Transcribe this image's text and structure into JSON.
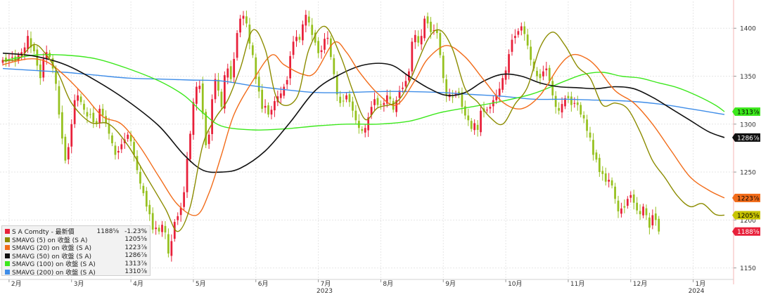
{
  "chart_data": {
    "type": "candlestick",
    "instrument": "S A Comdty",
    "last_price_label": "最新價",
    "last_price": 1188,
    "change_pct": "-1.23%",
    "ylim": [
      1138,
      1428
    ],
    "yticks": [
      1150,
      1200,
      1250,
      1300,
      1350,
      1400
    ],
    "x_axis": {
      "months": [
        {
          "label": "2月",
          "pos": 2
        },
        {
          "label": "3月",
          "pos": 22
        },
        {
          "label": "4月",
          "pos": 41
        },
        {
          "label": "5月",
          "pos": 61
        },
        {
          "label": "6月",
          "pos": 81
        },
        {
          "label": "7月",
          "pos": 101
        },
        {
          "label": "8月",
          "pos": 121
        },
        {
          "label": "9月",
          "pos": 141
        },
        {
          "label": "10月",
          "pos": 161
        },
        {
          "label": "11月",
          "pos": 181
        },
        {
          "label": "12月",
          "pos": 201
        },
        {
          "label": "1月",
          "pos": 221
        }
      ],
      "years": [
        {
          "label": "2023",
          "pos": 103
        },
        {
          "label": "2024",
          "pos": 222
        }
      ],
      "n_bars": 232
    },
    "candle_colors": {
      "up": "#e8203a",
      "down": "#96c11f"
    },
    "closes": [
      1367,
      1365,
      1368,
      1370,
      1366,
      1372,
      1375,
      1380,
      1392,
      1380,
      1376,
      1361,
      1348,
      1368,
      1375,
      1370,
      1358,
      1342,
      1310,
      1285,
      1262,
      1276,
      1300,
      1325,
      1330,
      1323,
      1315,
      1308,
      1310,
      1302,
      1300,
      1316,
      1309,
      1301,
      1290,
      1280,
      1268,
      1272,
      1279,
      1284,
      1289,
      1282,
      1268,
      1252,
      1238,
      1228,
      1214,
      1206,
      1190,
      1192,
      1188,
      1195,
      1187,
      1165,
      1178,
      1198,
      1204,
      1213,
      1229,
      1264,
      1290,
      1323,
      1339,
      1340,
      1311,
      1278,
      1289,
      1326,
      1347,
      1335,
      1318,
      1351,
      1358,
      1347,
      1368,
      1395,
      1410,
      1413,
      1405,
      1384,
      1372,
      1347,
      1334,
      1316,
      1319,
      1310,
      1315,
      1324,
      1329,
      1332,
      1339,
      1346,
      1371,
      1386,
      1391,
      1388,
      1404,
      1414,
      1406,
      1393,
      1385,
      1374,
      1377,
      1389,
      1390,
      1370,
      1352,
      1331,
      1322,
      1324,
      1330,
      1323,
      1314,
      1304,
      1296,
      1293,
      1296,
      1307,
      1318,
      1326,
      1320,
      1320,
      1322,
      1330,
      1326,
      1315,
      1325,
      1335,
      1338,
      1345,
      1355,
      1386,
      1393,
      1385,
      1392,
      1410,
      1405,
      1396,
      1398,
      1395,
      1372,
      1348,
      1330,
      1331,
      1328,
      1332,
      1332,
      1318,
      1309,
      1304,
      1295,
      1301,
      1294,
      1314,
      1313,
      1315,
      1318,
      1325,
      1330,
      1337,
      1348,
      1356,
      1373,
      1388,
      1392,
      1397,
      1402,
      1394,
      1382,
      1367,
      1358,
      1350,
      1348,
      1355,
      1358,
      1345,
      1330,
      1318,
      1314,
      1321,
      1327,
      1327,
      1320,
      1322,
      1320,
      1310,
      1306,
      1293,
      1286,
      1268,
      1263,
      1250,
      1248,
      1240,
      1242,
      1236,
      1222,
      1209,
      1212,
      1213,
      1222,
      1226,
      1218,
      1210,
      1206,
      1214,
      1205,
      1192,
      1205,
      1200,
      1188
    ],
    "series": [
      {
        "name": "SMAVG (5)  on 收盤 (S A)",
        "last": 1205,
        "color": "#8c8c00",
        "knots": [
          [
            0,
            1366
          ],
          [
            5,
            1368
          ],
          [
            10,
            1383
          ],
          [
            14,
            1372
          ],
          [
            18,
            1351
          ],
          [
            22,
            1322
          ],
          [
            28,
            1302
          ],
          [
            34,
            1300
          ],
          [
            40,
            1278
          ],
          [
            46,
            1245
          ],
          [
            52,
            1212
          ],
          [
            56,
            1188
          ],
          [
            60,
            1214
          ],
          [
            64,
            1278
          ],
          [
            68,
            1306
          ],
          [
            72,
            1325
          ],
          [
            76,
            1358
          ],
          [
            80,
            1398
          ],
          [
            84,
            1378
          ],
          [
            88,
            1325
          ],
          [
            94,
            1327
          ],
          [
            98,
            1378
          ],
          [
            103,
            1402
          ],
          [
            108,
            1372
          ],
          [
            112,
            1335
          ],
          [
            116,
            1305
          ],
          [
            120,
            1317
          ],
          [
            126,
            1323
          ],
          [
            130,
            1343
          ],
          [
            136,
            1388
          ],
          [
            140,
            1398
          ],
          [
            144,
            1378
          ],
          [
            148,
            1337
          ],
          [
            152,
            1323
          ],
          [
            156,
            1307
          ],
          [
            160,
            1300
          ],
          [
            164,
            1321
          ],
          [
            168,
            1339
          ],
          [
            172,
            1380
          ],
          [
            176,
            1396
          ],
          [
            180,
            1382
          ],
          [
            184,
            1360
          ],
          [
            188,
            1348
          ],
          [
            192,
            1320
          ],
          [
            196,
            1322
          ],
          [
            200,
            1316
          ],
          [
            204,
            1292
          ],
          [
            208,
            1262
          ],
          [
            212,
            1244
          ],
          [
            216,
            1225
          ],
          [
            220,
            1214
          ],
          [
            224,
            1217
          ],
          [
            228,
            1206
          ],
          [
            231,
            1205
          ]
        ]
      },
      {
        "name": "SMAVG (20)  on 收盤 (S A)",
        "last": 1223,
        "color": "#f26c1a",
        "knots": [
          [
            0,
            1362
          ],
          [
            8,
            1368
          ],
          [
            14,
            1365
          ],
          [
            20,
            1350
          ],
          [
            26,
            1330
          ],
          [
            32,
            1308
          ],
          [
            38,
            1300
          ],
          [
            44,
            1276
          ],
          [
            50,
            1245
          ],
          [
            56,
            1216
          ],
          [
            62,
            1205
          ],
          [
            66,
            1228
          ],
          [
            70,
            1268
          ],
          [
            74,
            1310
          ],
          [
            80,
            1345
          ],
          [
            86,
            1372
          ],
          [
            90,
            1362
          ],
          [
            96,
            1352
          ],
          [
            100,
            1354
          ],
          [
            106,
            1385
          ],
          [
            110,
            1375
          ],
          [
            114,
            1355
          ],
          [
            120,
            1332
          ],
          [
            126,
            1320
          ],
          [
            132,
            1346
          ],
          [
            136,
            1368
          ],
          [
            142,
            1382
          ],
          [
            148,
            1370
          ],
          [
            154,
            1346
          ],
          [
            160,
            1323
          ],
          [
            166,
            1316
          ],
          [
            172,
            1330
          ],
          [
            178,
            1360
          ],
          [
            182,
            1372
          ],
          [
            186,
            1370
          ],
          [
            190,
            1360
          ],
          [
            196,
            1335
          ],
          [
            202,
            1322
          ],
          [
            208,
            1300
          ],
          [
            214,
            1272
          ],
          [
            220,
            1245
          ],
          [
            226,
            1231
          ],
          [
            231,
            1223
          ]
        ]
      },
      {
        "name": "SMAVG (50)  on 收盤 (S A)",
        "last": 1286,
        "color": "#111111",
        "knots": [
          [
            0,
            1374
          ],
          [
            10,
            1371
          ],
          [
            20,
            1362
          ],
          [
            30,
            1345
          ],
          [
            40,
            1324
          ],
          [
            50,
            1298
          ],
          [
            58,
            1268
          ],
          [
            64,
            1252
          ],
          [
            70,
            1250
          ],
          [
            76,
            1254
          ],
          [
            84,
            1272
          ],
          [
            92,
            1302
          ],
          [
            100,
            1335
          ],
          [
            108,
            1352
          ],
          [
            116,
            1362
          ],
          [
            124,
            1362
          ],
          [
            130,
            1350
          ],
          [
            136,
            1338
          ],
          [
            142,
            1330
          ],
          [
            148,
            1333
          ],
          [
            154,
            1345
          ],
          [
            160,
            1352
          ],
          [
            166,
            1350
          ],
          [
            172,
            1343
          ],
          [
            178,
            1339
          ],
          [
            184,
            1338
          ],
          [
            190,
            1337
          ],
          [
            196,
            1339
          ],
          [
            202,
            1337
          ],
          [
            208,
            1328
          ],
          [
            214,
            1316
          ],
          [
            220,
            1304
          ],
          [
            226,
            1292
          ],
          [
            231,
            1286
          ]
        ]
      },
      {
        "name": "SMAVG (100)  on 收盤 (S A)",
        "last": 1313,
        "color": "#3de81d",
        "knots": [
          [
            0,
            1366
          ],
          [
            10,
            1372
          ],
          [
            20,
            1372
          ],
          [
            30,
            1368
          ],
          [
            40,
            1358
          ],
          [
            50,
            1345
          ],
          [
            58,
            1330
          ],
          [
            64,
            1312
          ],
          [
            70,
            1298
          ],
          [
            80,
            1294
          ],
          [
            90,
            1295
          ],
          [
            100,
            1298
          ],
          [
            110,
            1300
          ],
          [
            120,
            1300
          ],
          [
            130,
            1303
          ],
          [
            140,
            1312
          ],
          [
            150,
            1318
          ],
          [
            160,
            1324
          ],
          [
            170,
            1332
          ],
          [
            180,
            1345
          ],
          [
            186,
            1352
          ],
          [
            192,
            1354
          ],
          [
            198,
            1350
          ],
          [
            204,
            1348
          ],
          [
            210,
            1343
          ],
          [
            216,
            1338
          ],
          [
            222,
            1330
          ],
          [
            228,
            1320
          ],
          [
            231,
            1313
          ]
        ]
      },
      {
        "name": "SMAVG (200)  on 收盤 (S A)",
        "last": 1310,
        "color": "#3f8de8",
        "knots": [
          [
            0,
            1358
          ],
          [
            10,
            1356
          ],
          [
            20,
            1354
          ],
          [
            30,
            1351
          ],
          [
            40,
            1348
          ],
          [
            50,
            1347
          ],
          [
            60,
            1346
          ],
          [
            70,
            1345
          ],
          [
            80,
            1340
          ],
          [
            90,
            1336
          ],
          [
            100,
            1333
          ],
          [
            110,
            1333
          ],
          [
            120,
            1334
          ],
          [
            130,
            1334
          ],
          [
            140,
            1333
          ],
          [
            150,
            1331
          ],
          [
            160,
            1329
          ],
          [
            170,
            1326
          ],
          [
            180,
            1326
          ],
          [
            190,
            1325
          ],
          [
            200,
            1324
          ],
          [
            210,
            1321
          ],
          [
            220,
            1316
          ],
          [
            231,
            1310
          ]
        ]
      }
    ],
    "price_tags": [
      {
        "text": "1313",
        "suffix": "⅞",
        "bg": "#3de81d",
        "fg": "#000000",
        "value": 1313
      },
      {
        "text": "1286",
        "suffix": "⅞",
        "bg": "#111111",
        "fg": "#ffffff",
        "value": 1286
      },
      {
        "text": "1223",
        "suffix": "⅞",
        "bg": "#f26c1a",
        "fg": "#000000",
        "value": 1223
      },
      {
        "text": "1205",
        "suffix": "⅝",
        "bg": "#c8c400",
        "fg": "#000000",
        "value": 1205
      },
      {
        "text": "1188",
        "suffix": "⅝",
        "bg": "#e8203a",
        "fg": "#ffffff",
        "value": 1188
      }
    ]
  },
  "legend": {
    "rows": [
      {
        "swatch": "#e8203a",
        "name": "S A Comdty - 最新價",
        "value": "1188⅝",
        "change": "-1.23%"
      },
      {
        "swatch": "#8c8c00",
        "name": "SMAVG (5)  on 收盤 (S A)",
        "value": "1205⅝",
        "change": ""
      },
      {
        "swatch": "#f26c1a",
        "name": "SMAVG (20)  on 收盤 (S A)",
        "value": "1223⅞",
        "change": ""
      },
      {
        "swatch": "#111111",
        "name": "SMAVG (50)  on 收盤 (S A)",
        "value": "1286⅞",
        "change": ""
      },
      {
        "swatch": "#3de81d",
        "name": "SMAVG (100)  on 收盤 (S A)",
        "value": "1313⅞",
        "change": ""
      },
      {
        "swatch": "#3f8de8",
        "name": "SMAVG (200)  on 收盤 (S A)",
        "value": "1310⅞",
        "change": ""
      }
    ]
  }
}
